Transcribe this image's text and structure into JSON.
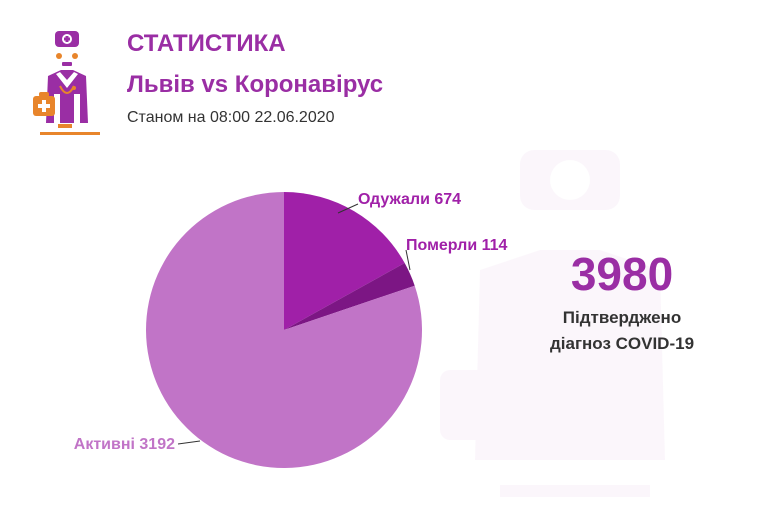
{
  "header": {
    "title": "СТАТИСТИКА",
    "subtitle": "Львів vs Коронавірус",
    "date": "Станом на 08:00 22.06.2020"
  },
  "summary": {
    "total": "3980",
    "caption_line1": "Підтверджено",
    "caption_line2": "діагноз COVID-19"
  },
  "icons": {
    "logo": "doctor-icon",
    "watermark": "doctor-icon"
  },
  "colors": {
    "brand": "#9a2ea4",
    "accent": "#e8852b"
  },
  "chart_data": {
    "type": "pie",
    "labels": [
      "Одужали 674",
      "Померли 114",
      "Активні 3192"
    ],
    "categories": [
      "Одужали",
      "Померли",
      "Активні"
    ],
    "values": [
      674,
      114,
      3192
    ],
    "colors": [
      "#a020a8",
      "#7c1684",
      "#c174c7"
    ],
    "start_angle_deg": 0,
    "direction": "clockwise"
  }
}
